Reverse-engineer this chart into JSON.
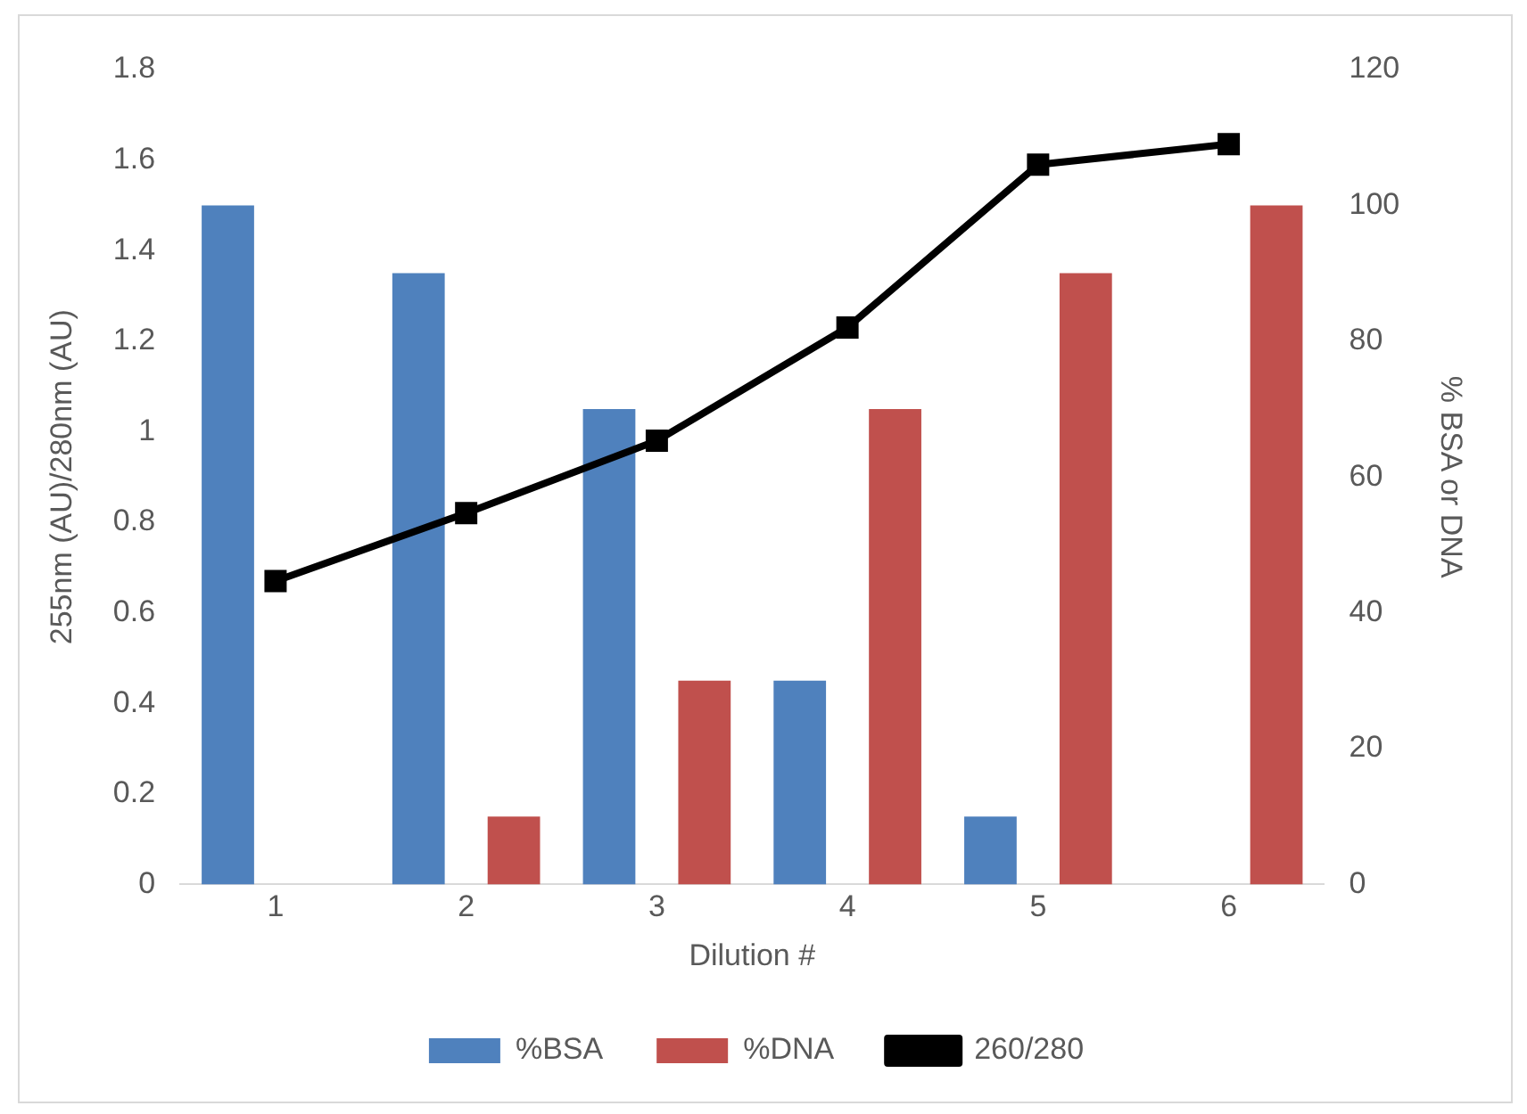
{
  "chart_data": {
    "type": "bar",
    "xlabel": "Dilution #",
    "ylabel": "255nm (AU)/280nm (AU)",
    "y2label": "% BSA or DNA",
    "categories": [
      "1",
      "2",
      "3",
      "4",
      "5",
      "6"
    ],
    "series": [
      {
        "name": "%BSA",
        "axis": "y2",
        "color": "#4f81bd",
        "values": [
          100,
          90,
          70,
          30,
          10,
          0
        ]
      },
      {
        "name": "%DNA",
        "axis": "y2",
        "color": "#c0504d",
        "values": [
          0,
          10,
          30,
          70,
          90,
          100
        ]
      },
      {
        "name": "260/280",
        "type": "line",
        "color": "#000000",
        "values": [
          0.67,
          0.82,
          0.98,
          1.23,
          1.59,
          1.635
        ]
      }
    ],
    "ylim": [
      0,
      1.8
    ],
    "yticks": [
      0,
      0.2,
      0.4,
      0.6,
      0.8,
      1,
      1.2,
      1.4,
      1.6,
      1.8
    ],
    "y2lim": [
      0,
      120
    ],
    "y2ticks": [
      0,
      20,
      40,
      60,
      80,
      100,
      120
    ],
    "legend": "bottom",
    "marker": "square",
    "line_style": "solid"
  }
}
